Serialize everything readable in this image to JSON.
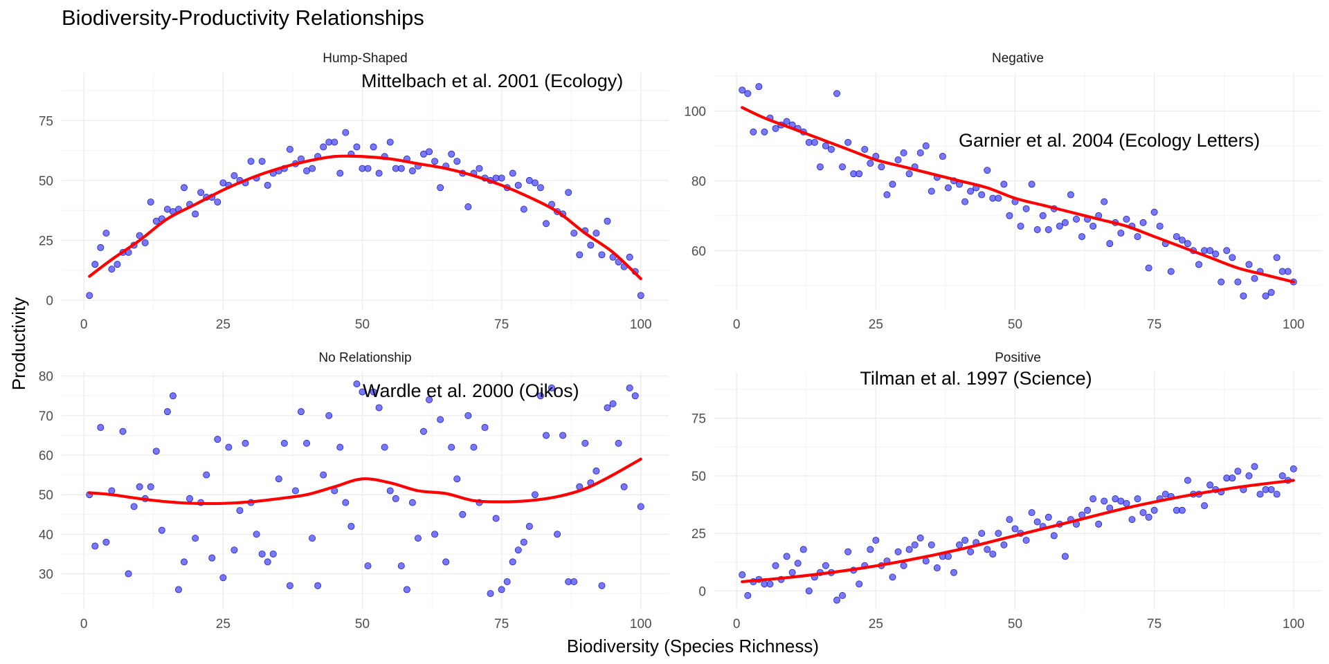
{
  "figure": {
    "title": "Biodiversity-Productivity Relationships",
    "xlabel": "Biodiversity (Species Richness)",
    "ylabel": "Productivity"
  },
  "colors": {
    "points": "#5555ff",
    "points_edge": "#2222aa",
    "fit_line": "#ff0000",
    "grid": "#ebebeb"
  },
  "chart_data": [
    {
      "type": "scatter",
      "panel": "Hump-Shaped",
      "annotation": "Mittelbach et al. 2001 (Ecology)",
      "xlim": [
        -4,
        105
      ],
      "ylim": [
        -4,
        95
      ],
      "xticks": [
        0,
        25,
        50,
        75,
        100
      ],
      "yticks": [
        0,
        25,
        50,
        75
      ],
      "x": [
        1,
        2,
        3,
        4,
        5,
        6,
        7,
        8,
        9,
        10,
        11,
        12,
        13,
        14,
        15,
        16,
        17,
        18,
        19,
        20,
        21,
        22,
        23,
        24,
        25,
        26,
        27,
        28,
        29,
        30,
        31,
        32,
        33,
        34,
        35,
        36,
        37,
        38,
        39,
        40,
        41,
        42,
        43,
        44,
        45,
        46,
        47,
        48,
        49,
        50,
        51,
        52,
        53,
        54,
        55,
        56,
        57,
        58,
        59,
        60,
        61,
        62,
        63,
        64,
        65,
        66,
        67,
        68,
        69,
        70,
        71,
        72,
        73,
        74,
        75,
        76,
        77,
        78,
        79,
        80,
        81,
        82,
        83,
        84,
        85,
        86,
        87,
        88,
        89,
        90,
        91,
        92,
        93,
        94,
        95,
        96,
        97,
        98,
        99,
        100
      ],
      "y": [
        2,
        15,
        22,
        28,
        13,
        15,
        20,
        20,
        23,
        27,
        24,
        41,
        33,
        34,
        38,
        37,
        38,
        47,
        40,
        36,
        45,
        43,
        43,
        41,
        49,
        48,
        52,
        50,
        49,
        58,
        51,
        58,
        48,
        53,
        54,
        55,
        63,
        57,
        59,
        54,
        55,
        60,
        64,
        66,
        66,
        53,
        70,
        61,
        64,
        55,
        55,
        64,
        53,
        60,
        66,
        55,
        55,
        59,
        54,
        56,
        61,
        62,
        58,
        47,
        56,
        61,
        58,
        53,
        39,
        53,
        55,
        51,
        50,
        51,
        51,
        47,
        53,
        48,
        38,
        50,
        49,
        47,
        32,
        40,
        37,
        36,
        45,
        28,
        19,
        29,
        23,
        28,
        19,
        33,
        18,
        16,
        14,
        18,
        12,
        2
      ],
      "fit_x": [
        1,
        5,
        10,
        15,
        20,
        25,
        30,
        35,
        40,
        45,
        50,
        55,
        60,
        65,
        70,
        75,
        80,
        85,
        90,
        95,
        100
      ],
      "fit_y": [
        10,
        17,
        25,
        34,
        40,
        46,
        51,
        55,
        58,
        60,
        60,
        59,
        57,
        55,
        52,
        48,
        43,
        37,
        28,
        20,
        9
      ]
    },
    {
      "type": "scatter",
      "panel": "Negative",
      "annotation": "Garnier et al. 2004 (Ecology Letters)",
      "xlim": [
        -4,
        105
      ],
      "ylim": [
        43,
        111
      ],
      "xticks": [
        0,
        25,
        50,
        75,
        100
      ],
      "yticks": [
        60,
        80,
        100
      ],
      "x": [
        1,
        2,
        3,
        4,
        5,
        6,
        7,
        8,
        9,
        10,
        11,
        12,
        13,
        14,
        15,
        16,
        17,
        18,
        19,
        20,
        21,
        22,
        23,
        24,
        25,
        26,
        27,
        28,
        29,
        30,
        31,
        32,
        33,
        34,
        35,
        36,
        37,
        38,
        39,
        40,
        41,
        42,
        43,
        44,
        45,
        46,
        47,
        48,
        49,
        50,
        51,
        52,
        53,
        54,
        55,
        56,
        57,
        58,
        59,
        60,
        61,
        62,
        63,
        64,
        65,
        66,
        67,
        68,
        69,
        70,
        71,
        72,
        73,
        74,
        75,
        76,
        77,
        78,
        79,
        80,
        81,
        82,
        83,
        84,
        85,
        86,
        87,
        88,
        89,
        90,
        91,
        92,
        93,
        94,
        95,
        96,
        97,
        98,
        99,
        100
      ],
      "y": [
        106,
        105,
        94,
        107,
        94,
        98,
        95,
        96,
        97,
        96,
        95,
        94,
        91,
        91,
        84,
        90,
        89,
        105,
        84,
        91,
        82,
        82,
        89,
        85,
        87,
        84,
        76,
        79,
        86,
        88,
        82,
        84,
        88,
        90,
        77,
        81,
        87,
        78,
        80,
        79,
        74,
        77,
        78,
        76,
        83,
        75,
        75,
        79,
        70,
        74,
        67,
        72,
        79,
        66,
        70,
        66,
        72,
        67,
        68,
        76,
        69,
        64,
        69,
        67,
        70,
        74,
        62,
        68,
        65,
        69,
        67,
        64,
        68,
        55,
        71,
        67,
        62,
        54,
        64,
        63,
        62,
        60,
        56,
        60,
        60,
        59,
        51,
        60,
        58,
        51,
        47,
        56,
        52,
        54,
        47,
        48,
        58,
        54,
        54,
        51
      ],
      "fit_x": [
        1,
        5,
        10,
        15,
        20,
        25,
        30,
        35,
        40,
        45,
        50,
        55,
        60,
        65,
        70,
        75,
        80,
        85,
        90,
        95,
        100
      ],
      "fit_y": [
        101,
        98,
        95,
        92,
        89,
        86,
        84,
        82,
        80,
        78,
        75,
        73,
        71,
        69,
        67,
        64,
        61,
        58,
        55,
        53,
        51
      ]
    },
    {
      "type": "scatter",
      "panel": "No Relationship",
      "annotation": "Wardle et al. 2000 (Oikos)",
      "xlim": [
        -4,
        105
      ],
      "ylim": [
        21,
        81
      ],
      "xticks": [
        0,
        25,
        50,
        75,
        100
      ],
      "yticks": [
        30,
        40,
        50,
        60,
        70,
        80
      ],
      "x": [
        1,
        2,
        3,
        4,
        5,
        7,
        8,
        9,
        10,
        11,
        12,
        13,
        14,
        15,
        16,
        17,
        18,
        19,
        20,
        21,
        22,
        23,
        24,
        25,
        26,
        27,
        28,
        29,
        30,
        31,
        32,
        33,
        34,
        35,
        36,
        37,
        38,
        39,
        40,
        41,
        42,
        43,
        44,
        45,
        46,
        47,
        48,
        49,
        50,
        51,
        52,
        53,
        54,
        55,
        56,
        57,
        58,
        59,
        60,
        61,
        62,
        63,
        64,
        65,
        66,
        67,
        68,
        69,
        70,
        71,
        72,
        73,
        74,
        75,
        76,
        77,
        78,
        79,
        80,
        81,
        82,
        83,
        84,
        85,
        86,
        87,
        88,
        89,
        90,
        91,
        92,
        93,
        94,
        95,
        96,
        97,
        98,
        99,
        100
      ],
      "y": [
        50,
        37,
        67,
        38,
        51,
        66,
        30,
        47,
        52,
        49,
        52,
        61,
        41,
        71,
        75,
        26,
        33,
        49,
        39,
        48,
        55,
        34,
        64,
        29,
        62,
        36,
        46,
        63,
        48,
        40,
        35,
        33,
        35,
        54,
        63,
        27,
        51,
        71,
        63,
        39,
        27,
        55,
        70,
        51,
        62,
        48,
        42,
        78,
        76,
        32,
        76,
        72,
        62,
        51,
        49,
        32,
        26,
        48,
        39,
        66,
        74,
        40,
        69,
        33,
        62,
        54,
        45,
        70,
        62,
        48,
        67,
        25,
        44,
        26,
        28,
        33,
        36,
        38,
        42,
        50,
        75,
        65,
        77,
        40,
        65,
        28,
        28,
        52,
        63,
        53,
        56,
        27,
        72,
        73,
        63,
        52,
        77,
        75,
        47
      ],
      "fit_x": [
        1,
        5,
        10,
        15,
        20,
        25,
        30,
        35,
        40,
        45,
        50,
        55,
        60,
        65,
        70,
        75,
        80,
        85,
        90,
        95,
        100
      ],
      "fit_y": [
        50.5,
        50,
        49,
        48.2,
        47.8,
        47.8,
        48.2,
        49,
        50,
        52,
        54,
        53,
        51,
        50.3,
        48.5,
        48.2,
        48.5,
        49.5,
        51.5,
        55,
        59
      ]
    },
    {
      "type": "scatter",
      "panel": "Positive",
      "annotation": "Tilman et al. 1997 (Science)",
      "xlim": [
        -4,
        105
      ],
      "ylim": [
        -8,
        95
      ],
      "xticks": [
        0,
        25,
        50,
        75,
        100
      ],
      "yticks": [
        0,
        25,
        50,
        75
      ],
      "x": [
        1,
        2,
        3,
        4,
        5,
        6,
        7,
        8,
        9,
        10,
        11,
        12,
        13,
        14,
        15,
        16,
        17,
        18,
        19,
        20,
        21,
        22,
        23,
        24,
        25,
        26,
        27,
        28,
        29,
        30,
        31,
        32,
        33,
        34,
        35,
        36,
        37,
        38,
        39,
        40,
        41,
        42,
        43,
        44,
        45,
        46,
        47,
        48,
        49,
        50,
        51,
        52,
        53,
        54,
        55,
        56,
        57,
        58,
        59,
        60,
        61,
        62,
        63,
        64,
        65,
        66,
        67,
        68,
        69,
        70,
        71,
        72,
        73,
        74,
        75,
        76,
        77,
        78,
        79,
        80,
        81,
        82,
        83,
        84,
        85,
        86,
        87,
        88,
        89,
        90,
        91,
        92,
        93,
        94,
        95,
        96,
        97,
        98,
        99,
        100
      ],
      "y": [
        7,
        -2,
        4,
        5,
        3,
        3,
        11,
        5,
        15,
        8,
        12,
        18,
        0,
        6,
        8,
        11,
        8,
        -4,
        -2,
        17,
        9,
        3,
        11,
        18,
        22,
        11,
        13,
        6,
        17,
        11,
        18,
        20,
        23,
        13,
        20,
        10,
        15,
        15,
        8,
        20,
        22,
        17,
        21,
        25,
        18,
        16,
        25,
        20,
        31,
        27,
        25,
        22,
        34,
        30,
        28,
        32,
        24,
        29,
        15,
        31,
        29,
        33,
        35,
        40,
        29,
        39,
        36,
        40,
        39,
        38,
        31,
        40,
        34,
        32,
        35,
        40,
        42,
        41,
        35,
        35,
        48,
        42,
        42,
        37,
        46,
        44,
        43,
        49,
        49,
        52,
        44,
        50,
        54,
        42,
        44,
        44,
        42,
        50,
        48,
        53
      ],
      "fit_x": [
        1,
        10,
        20,
        30,
        40,
        50,
        60,
        70,
        80,
        90,
        100
      ],
      "fit_y": [
        4,
        6,
        9,
        13,
        18,
        24,
        30,
        36,
        41,
        45,
        48
      ]
    }
  ]
}
